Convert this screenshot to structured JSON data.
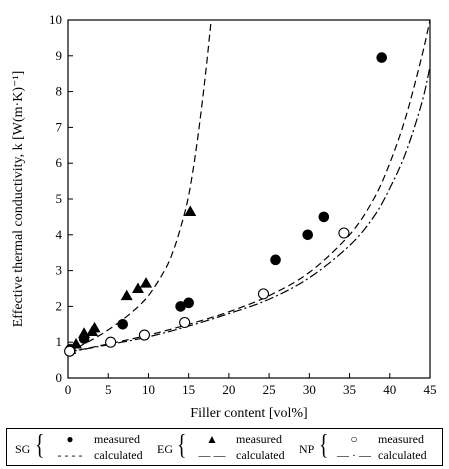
{
  "chart_data": {
    "type": "scatter",
    "xlabel": "Filler content [vol%]",
    "ylabel": "Effective thermal conductivity, k [W(m·K)⁻¹]",
    "xlim": [
      0,
      45
    ],
    "ylim": [
      0,
      10
    ],
    "xticks": [
      "0",
      "5",
      "10",
      "15",
      "20",
      "25",
      "30",
      "35",
      "40",
      "45"
    ],
    "yticks": [
      "0",
      "1",
      "2",
      "3",
      "4",
      "5",
      "6",
      "7",
      "8",
      "9",
      "10"
    ],
    "grid": false,
    "legend_position": "bottom",
    "series": [
      {
        "name": "SG",
        "kind": "measured",
        "marker": "filled-circle",
        "x": [
          0.3,
          2.0,
          6.8,
          14.0,
          15.0,
          25.8,
          29.8,
          31.8,
          39.0
        ],
        "y": [
          0.8,
          1.1,
          1.5,
          2.0,
          2.1,
          3.3,
          4.0,
          4.5,
          8.95
        ]
      },
      {
        "name": "EG",
        "kind": "measured",
        "marker": "filled-triangle",
        "x": [
          0.3,
          1.0,
          2.0,
          3.0,
          3.3,
          7.3,
          8.7,
          9.7,
          15.2
        ],
        "y": [
          0.8,
          0.95,
          1.25,
          1.3,
          1.4,
          2.3,
          2.5,
          2.65,
          4.65
        ]
      },
      {
        "name": "NP",
        "kind": "measured",
        "marker": "open-circle",
        "x": [
          0.2,
          5.3,
          9.5,
          14.5,
          24.3,
          34.3
        ],
        "y": [
          0.75,
          1.0,
          1.2,
          1.55,
          2.35,
          4.05
        ]
      },
      {
        "name": "EG",
        "kind": "calculated",
        "line": "dashed",
        "x": [
          0,
          2,
          4,
          6,
          8,
          10,
          12,
          13,
          14,
          15,
          16,
          17,
          17.8
        ],
        "y": [
          0.72,
          0.95,
          1.2,
          1.5,
          1.85,
          2.3,
          3.0,
          3.5,
          4.2,
          5.1,
          6.5,
          8.3,
          10
        ]
      },
      {
        "name": "SG",
        "kind": "calculated",
        "line": "dashed",
        "x": [
          0,
          5,
          10,
          15,
          20,
          25,
          30,
          35,
          38,
          40,
          42,
          44,
          45
        ],
        "y": [
          0.72,
          0.95,
          1.2,
          1.5,
          1.85,
          2.3,
          2.95,
          4.0,
          5.0,
          6.0,
          7.3,
          9.0,
          10
        ]
      },
      {
        "name": "NP",
        "kind": "calculated",
        "line": "dash-dot",
        "x": [
          0,
          5,
          10,
          15,
          20,
          25,
          30,
          35,
          38,
          40,
          42,
          44,
          45
        ],
        "y": [
          0.72,
          0.93,
          1.15,
          1.45,
          1.8,
          2.2,
          2.8,
          3.7,
          4.5,
          5.3,
          6.3,
          7.7,
          8.7
        ]
      }
    ]
  },
  "legend": {
    "groups": [
      {
        "abbr": "SG",
        "measured_sym": "●",
        "measured": "measured",
        "calculated_sym": "- - - -",
        "calculated": "calculated"
      },
      {
        "abbr": "EG",
        "measured_sym": "▲",
        "measured": "measured",
        "calculated_sym": "— —",
        "calculated": "calculated"
      },
      {
        "abbr": "NP",
        "measured_sym": "○",
        "measured": "measured",
        "calculated_sym": "— · —",
        "calculated": "calculated"
      }
    ]
  }
}
